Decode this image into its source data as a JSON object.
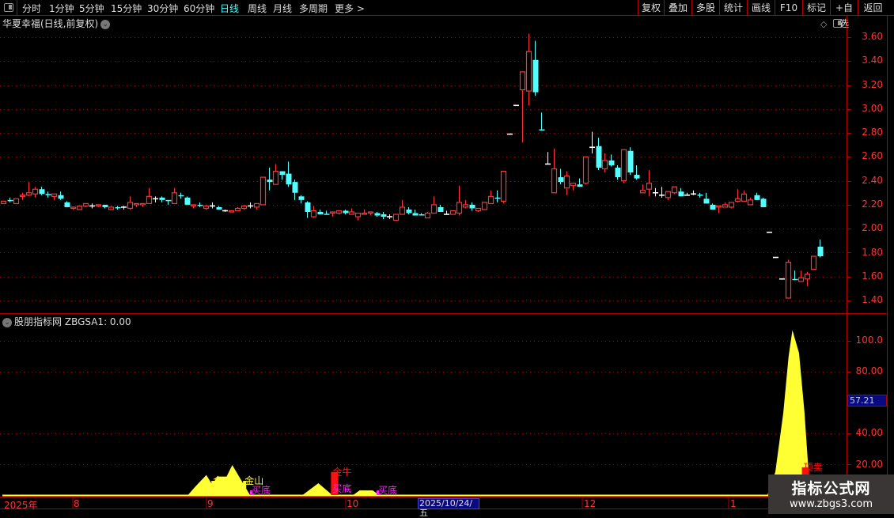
{
  "toolbar": {
    "periods": [
      "分时",
      "1分钟",
      "5分钟",
      "15分钟",
      "30分钟",
      "60分钟",
      "日线",
      "周线",
      "月线",
      "多周期",
      "更多 >"
    ],
    "active_period": "日线",
    "buttons": [
      "复权",
      "叠加",
      "多股",
      "统计",
      "画线",
      "F10",
      "标记",
      "+自选",
      "返回"
    ]
  },
  "main_chart": {
    "title": "华夏幸福(日线,前复权)",
    "y_ticks": [
      "3.60",
      "3.40",
      "3.20",
      "3.00",
      "2.80",
      "2.60",
      "2.40",
      "2.20",
      "2.00",
      "1.80",
      "1.60",
      "1.40"
    ]
  },
  "indicator": {
    "title": "股朋指标网",
    "value_label": "ZBGSA1: 0.00",
    "y_ticks": [
      "100.0",
      "80.00",
      "40.00",
      "20.00"
    ],
    "current_value": "57.21"
  },
  "x_axis": {
    "labels": [
      "2025年",
      "8",
      "9",
      "10",
      "12",
      "1"
    ],
    "cursor_date": "2025/10/24/五"
  },
  "watermark": {
    "title": "指标公式网",
    "url": "www.zbgs3.com"
  },
  "colors": {
    "up": "#ff3333",
    "down": "#54ffff",
    "flat": "#ffffff",
    "area": "#ffff33",
    "grid": "#b00000",
    "buy": "#ff22ff"
  },
  "chart_data": {
    "type": "candlestick",
    "ohlc": [
      [
        2.21,
        2.23,
        2.21,
        2.23
      ],
      [
        2.24,
        2.26,
        2.22,
        2.23
      ],
      [
        2.21,
        2.25,
        2.21,
        2.25
      ],
      [
        2.27,
        2.3,
        2.24,
        2.28
      ],
      [
        2.28,
        2.39,
        2.27,
        2.3
      ],
      [
        2.29,
        2.35,
        2.26,
        2.33
      ],
      [
        2.33,
        2.35,
        2.28,
        2.29
      ],
      [
        2.29,
        2.31,
        2.26,
        2.28
      ],
      [
        2.27,
        2.29,
        2.24,
        2.29
      ],
      [
        2.28,
        2.31,
        2.24,
        2.25
      ],
      [
        2.22,
        2.23,
        2.18,
        2.18
      ],
      [
        2.17,
        2.185,
        2.16,
        2.18
      ],
      [
        2.16,
        2.19,
        2.16,
        2.19
      ],
      [
        2.19,
        2.21,
        2.18,
        2.21
      ],
      [
        2.19,
        2.21,
        2.17,
        2.19
      ],
      [
        2.19,
        2.2,
        2.18,
        2.2
      ],
      [
        2.2,
        2.2,
        2.17,
        2.18
      ],
      [
        2.16,
        2.19,
        2.16,
        2.18
      ],
      [
        2.18,
        2.19,
        2.16,
        2.175
      ],
      [
        2.18,
        2.19,
        2.16,
        2.18
      ],
      [
        2.17,
        2.27,
        2.16,
        2.22
      ],
      [
        2.2,
        2.21,
        2.18,
        2.21
      ],
      [
        2.2,
        2.21,
        2.18,
        2.21
      ],
      [
        2.21,
        2.34,
        2.21,
        2.27
      ],
      [
        2.25,
        2.27,
        2.22,
        2.25
      ],
      [
        2.26,
        2.27,
        2.22,
        2.24
      ],
      [
        2.24,
        2.24,
        2.2,
        2.23
      ],
      [
        2.21,
        2.34,
        2.21,
        2.3
      ],
      [
        2.28,
        2.3,
        2.25,
        2.275
      ],
      [
        2.26,
        2.27,
        2.2,
        2.2
      ],
      [
        2.19,
        2.2,
        2.17,
        2.2
      ],
      [
        2.2,
        2.22,
        2.18,
        2.19
      ],
      [
        2.17,
        2.2,
        2.16,
        2.19
      ],
      [
        2.19,
        2.22,
        2.17,
        2.19
      ],
      [
        2.18,
        2.19,
        2.16,
        2.16
      ],
      [
        2.15,
        2.16,
        2.14,
        2.15
      ],
      [
        2.14,
        2.15,
        2.14,
        2.15
      ],
      [
        2.15,
        2.18,
        2.15,
        2.17
      ],
      [
        2.17,
        2.2,
        2.16,
        2.19
      ],
      [
        2.19,
        2.22,
        2.17,
        2.19
      ],
      [
        2.18,
        2.21,
        2.16,
        2.21
      ],
      [
        2.2,
        2.43,
        2.2,
        2.43
      ],
      [
        2.41,
        2.51,
        2.32,
        2.39
      ],
      [
        2.37,
        2.54,
        2.37,
        2.48
      ],
      [
        2.48,
        2.48,
        2.41,
        2.45
      ],
      [
        2.46,
        2.56,
        2.35,
        2.37
      ],
      [
        2.39,
        2.41,
        2.24,
        2.3
      ],
      [
        2.27,
        2.28,
        2.21,
        2.24
      ],
      [
        2.22,
        2.23,
        2.09,
        2.14
      ],
      [
        2.1,
        2.19,
        2.09,
        2.15
      ],
      [
        2.14,
        2.16,
        2.12,
        2.12
      ],
      [
        2.125,
        2.15,
        2.12,
        2.12
      ],
      [
        2.13,
        2.14,
        2.1,
        2.14
      ],
      [
        2.13,
        2.15,
        2.12,
        2.15
      ],
      [
        2.15,
        2.16,
        2.12,
        2.13
      ],
      [
        2.12,
        2.17,
        2.12,
        2.14
      ],
      [
        2.1,
        2.13,
        2.07,
        2.13
      ],
      [
        2.12,
        2.16,
        2.12,
        2.13
      ],
      [
        2.13,
        2.14,
        2.11,
        2.14
      ],
      [
        2.13,
        2.14,
        2.1,
        2.11
      ],
      [
        2.12,
        2.14,
        2.08,
        2.1
      ],
      [
        2.1,
        2.12,
        2.08,
        2.1
      ],
      [
        2.07,
        2.12,
        2.07,
        2.12
      ],
      [
        2.12,
        2.24,
        2.12,
        2.18
      ],
      [
        2.16,
        2.18,
        2.12,
        2.13
      ],
      [
        2.13,
        2.16,
        2.11,
        2.11
      ],
      [
        2.12,
        2.13,
        2.11,
        2.115
      ],
      [
        2.09,
        2.14,
        2.09,
        2.13
      ],
      [
        2.13,
        2.27,
        2.13,
        2.2
      ],
      [
        2.18,
        2.2,
        2.14,
        2.14
      ],
      [
        2.12,
        2.15,
        2.12,
        2.12
      ],
      [
        2.12,
        2.15,
        2.12,
        2.15
      ],
      [
        2.13,
        2.36,
        2.11,
        2.22
      ],
      [
        2.18,
        2.24,
        2.17,
        2.2
      ],
      [
        2.2,
        2.22,
        2.15,
        2.17
      ],
      [
        2.15,
        2.17,
        2.14,
        2.17
      ],
      [
        2.16,
        2.22,
        2.16,
        2.22
      ],
      [
        2.21,
        2.32,
        2.21,
        2.27
      ],
      [
        2.26,
        2.32,
        2.22,
        2.25
      ],
      [
        2.23,
        2.48,
        2.21,
        2.48
      ],
      [
        2.79,
        2.79,
        2.79,
        2.79
      ],
      [
        3.03,
        3.03,
        3.03,
        3.03
      ],
      [
        3.16,
        3.31,
        2.72,
        3.31
      ],
      [
        3.15,
        3.63,
        3.03,
        3.48
      ],
      [
        3.41,
        3.57,
        3.11,
        3.14
      ],
      [
        2.83,
        2.97,
        2.82,
        2.82
      ],
      [
        2.54,
        2.64,
        2.54,
        2.54
      ],
      [
        2.3,
        2.67,
        2.3,
        2.5
      ],
      [
        2.43,
        2.5,
        2.37,
        2.39
      ],
      [
        2.34,
        2.48,
        2.28,
        2.44
      ],
      [
        2.36,
        2.38,
        2.32,
        2.38
      ],
      [
        2.37,
        2.42,
        2.35,
        2.35
      ],
      [
        2.38,
        2.6,
        2.37,
        2.6
      ],
      [
        2.68,
        2.81,
        2.63,
        2.68
      ],
      [
        2.69,
        2.76,
        2.49,
        2.51
      ],
      [
        2.5,
        2.63,
        2.47,
        2.57
      ],
      [
        2.57,
        2.62,
        2.52,
        2.53
      ],
      [
        2.51,
        2.53,
        2.41,
        2.43
      ],
      [
        2.4,
        2.66,
        2.38,
        2.66
      ],
      [
        2.65,
        2.68,
        2.45,
        2.47
      ],
      [
        2.45,
        2.53,
        2.41,
        2.42
      ],
      [
        2.3,
        2.37,
        2.3,
        2.32
      ],
      [
        2.33,
        2.49,
        2.27,
        2.38
      ],
      [
        2.3,
        2.34,
        2.27,
        2.3
      ],
      [
        2.28,
        2.35,
        2.26,
        2.28
      ],
      [
        2.26,
        2.31,
        2.24,
        2.31
      ],
      [
        2.3,
        2.35,
        2.29,
        2.35
      ],
      [
        2.31,
        2.34,
        2.27,
        2.27
      ],
      [
        2.28,
        2.3,
        2.28,
        2.28
      ],
      [
        2.29,
        2.32,
        2.28,
        2.29
      ],
      [
        2.285,
        2.3,
        2.26,
        2.28
      ],
      [
        2.25,
        2.3,
        2.21,
        2.21
      ],
      [
        2.2,
        2.21,
        2.16,
        2.16
      ],
      [
        2.18,
        2.19,
        2.13,
        2.19
      ],
      [
        2.18,
        2.22,
        2.18,
        2.2
      ],
      [
        2.18,
        2.22,
        2.17,
        2.22
      ],
      [
        2.23,
        2.33,
        2.22,
        2.25
      ],
      [
        2.23,
        2.32,
        2.23,
        2.29
      ],
      [
        2.2,
        2.26,
        2.2,
        2.24
      ],
      [
        2.28,
        2.3,
        2.24,
        2.24
      ],
      [
        2.25,
        2.26,
        2.18,
        2.18
      ],
      [
        1.97,
        1.97,
        1.97,
        1.97
      ],
      [
        1.76,
        1.76,
        1.76,
        1.76
      ],
      [
        1.58,
        1.58,
        1.58,
        1.58
      ],
      [
        1.42,
        1.74,
        1.42,
        1.72
      ],
      [
        1.58,
        1.65,
        1.57,
        1.57
      ],
      [
        1.56,
        1.65,
        1.56,
        1.59
      ],
      [
        1.58,
        1.64,
        1.52,
        1.62
      ],
      [
        1.66,
        1.77,
        1.66,
        1.77
      ],
      [
        1.85,
        1.91,
        1.76,
        1.77
      ]
    ],
    "ylim": [
      1.4,
      3.6
    ],
    "indicator_area": [
      [
        1,
        0
      ],
      [
        30.2,
        0
      ],
      [
        31.25,
        5
      ],
      [
        33.1,
        13
      ],
      [
        34,
        7
      ],
      [
        34.9,
        12
      ],
      [
        36.3,
        12
      ],
      [
        37.2,
        19.5
      ],
      [
        40,
        0
      ],
      [
        48.3,
        0
      ],
      [
        50.8,
        7.7
      ],
      [
        53,
        0
      ],
      [
        56.3,
        0
      ],
      [
        57.3,
        3
      ],
      [
        59.4,
        3
      ],
      [
        60.4,
        0
      ],
      [
        121.75,
        0
      ],
      [
        123,
        15
      ],
      [
        124.25,
        53
      ],
      [
        125.1,
        90
      ],
      [
        125.7,
        107
      ],
      [
        126.75,
        92
      ],
      [
        127.6,
        54
      ],
      [
        128.2,
        18
      ],
      [
        128.6,
        0
      ],
      [
        133,
        0
      ]
    ],
    "indicator_ylim": [
      0,
      110
    ],
    "signals": [
      {
        "label": "金山",
        "index": 33.9,
        "value": 9.2,
        "color": "#ffff33"
      },
      {
        "label": "金山",
        "index": 38.9,
        "value": 9.2,
        "color": "#ffff33"
      },
      {
        "label": "买底",
        "index": 40,
        "value": 3,
        "color": "#ff22ff"
      },
      {
        "label": "金牛",
        "index": 52.8,
        "value": 15,
        "color": "#ff1111"
      },
      {
        "label": "买底",
        "index": 52.8,
        "value": 0,
        "color": "#ff22ff"
      },
      {
        "label": "买底",
        "index": 60,
        "value": 3,
        "color": "#ff22ff"
      },
      {
        "label": "顶卖",
        "index": 127.2,
        "value": 18,
        "color": "#ff1111"
      }
    ]
  }
}
